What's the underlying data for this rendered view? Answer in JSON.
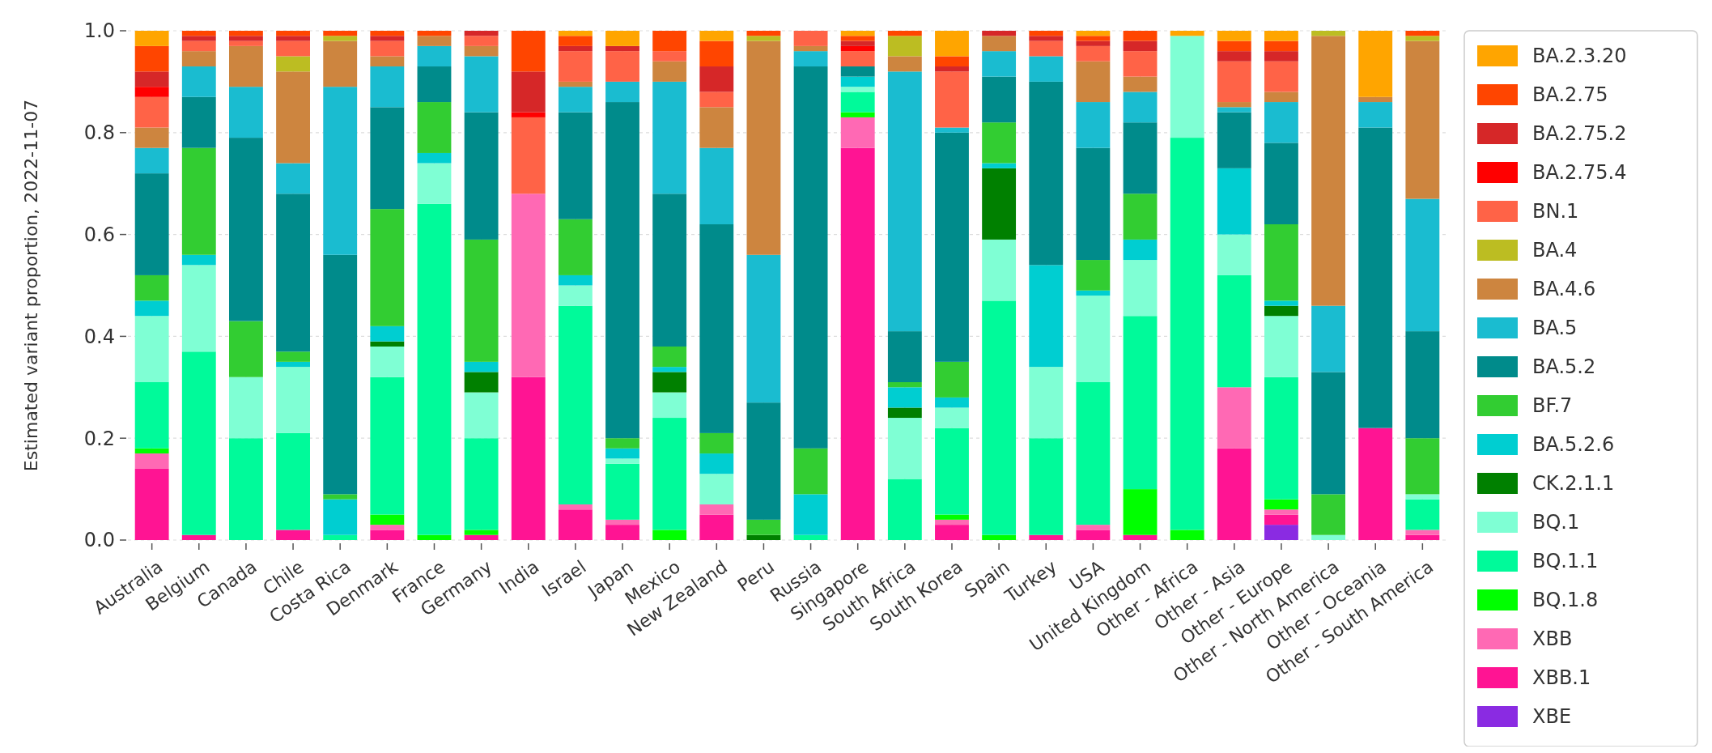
{
  "chart_data": {
    "type": "bar",
    "stacked": true,
    "ylabel": "Estimated variant proportion, 2022-11-07",
    "categories": [
      "Australia",
      "Belgium",
      "Canada",
      "Chile",
      "Costa Rica",
      "Denmark",
      "France",
      "Germany",
      "India",
      "Israel",
      "Japan",
      "Mexico",
      "New Zealand",
      "Peru",
      "Russia",
      "Singapore",
      "South Africa",
      "South Korea",
      "Spain",
      "Turkey",
      "USA",
      "United Kingdom",
      "Other - Africa",
      "Other - Asia",
      "Other - Europe",
      "Other - North America",
      "Other - Oceania",
      "Other - South America"
    ],
    "ylim": [
      0,
      1
    ],
    "yticks": [
      {
        "value": 0,
        "label": "0.0"
      },
      0.2,
      0.4,
      0.6,
      0.8,
      {
        "value": 1,
        "label": "1.0"
      }
    ],
    "grid": true,
    "legend": "right",
    "series": [
      {
        "name": "XBE",
        "color": "#8a2be2",
        "values": [
          0,
          0,
          0,
          0,
          0,
          0,
          0,
          0,
          0,
          0,
          0,
          0,
          0,
          0,
          0,
          0,
          0,
          0,
          0,
          0,
          0,
          0,
          0,
          0,
          0.03,
          0,
          0,
          0
        ]
      },
      {
        "name": "XBB.1",
        "color": "#ff1493",
        "values": [
          0.14,
          0.01,
          0,
          0.02,
          0,
          0.02,
          0,
          0.01,
          0.32,
          0.06,
          0.03,
          0,
          0.05,
          0,
          0,
          0.77,
          0,
          0.03,
          0,
          0.01,
          0.02,
          0.01,
          0,
          0.18,
          0.02,
          0,
          0.22,
          0.01
        ]
      },
      {
        "name": "XBB",
        "color": "#ff69b4",
        "values": [
          0.03,
          0,
          0,
          0,
          0,
          0.01,
          0,
          0,
          0.36,
          0.01,
          0.01,
          0,
          0.02,
          0,
          0,
          0.06,
          0,
          0.01,
          0,
          0,
          0.01,
          0,
          0,
          0.12,
          0.01,
          0,
          0,
          0.01
        ]
      },
      {
        "name": "BQ.1.8",
        "color": "#00ff00",
        "values": [
          0.01,
          0,
          0,
          0,
          0,
          0.02,
          0.01,
          0.01,
          0,
          0,
          0,
          0.02,
          0,
          0,
          0,
          0.01,
          0,
          0.01,
          0.01,
          0,
          0,
          0.09,
          0.02,
          0,
          0.02,
          0,
          0,
          0
        ]
      },
      {
        "name": "BQ.1.1",
        "color": "#00fa9a",
        "values": [
          0.13,
          0.36,
          0.2,
          0.19,
          0.01,
          0.27,
          0.65,
          0.18,
          0,
          0.39,
          0.11,
          0.22,
          0,
          0,
          0.01,
          0.04,
          0.12,
          0.17,
          0.46,
          0.19,
          0.28,
          0.34,
          0.77,
          0.22,
          0.24,
          0,
          0,
          0.06
        ]
      },
      {
        "name": "BQ.1",
        "color": "#7fffd4",
        "values": [
          0.13,
          0.17,
          0.12,
          0.13,
          0,
          0.06,
          0.08,
          0.09,
          0,
          0.04,
          0.01,
          0.05,
          0.06,
          0,
          0,
          0.01,
          0.12,
          0.04,
          0.12,
          0.14,
          0.17,
          0.11,
          0.2,
          0.08,
          0.12,
          0.01,
          0,
          0.01
        ]
      },
      {
        "name": "CK.2.1.1",
        "color": "#008000",
        "values": [
          0,
          0,
          0,
          0,
          0,
          0.01,
          0,
          0.04,
          0,
          0,
          0,
          0.04,
          0,
          0.01,
          0,
          0,
          0.02,
          0,
          0.14,
          0,
          0,
          0,
          0,
          0,
          0.02,
          0,
          0,
          0
        ]
      },
      {
        "name": "BA.5.2.6",
        "color": "#00ced1",
        "values": [
          0.03,
          0.02,
          0,
          0.01,
          0.07,
          0.03,
          0.02,
          0.02,
          0,
          0.02,
          0.02,
          0.01,
          0.04,
          0,
          0.08,
          0.02,
          0.04,
          0.02,
          0.01,
          0.2,
          0.01,
          0.04,
          0,
          0.13,
          0.01,
          0,
          0,
          0
        ]
      },
      {
        "name": "BF.7",
        "color": "#32cd32",
        "values": [
          0.05,
          0.21,
          0.11,
          0.02,
          0.01,
          0.23,
          0.1,
          0.24,
          0,
          0.11,
          0.02,
          0.04,
          0.04,
          0.03,
          0.09,
          0,
          0.01,
          0.07,
          0.08,
          0,
          0.06,
          0.09,
          0,
          0,
          0.15,
          0.08,
          0,
          0.11
        ]
      },
      {
        "name": "BA.5.2",
        "color": "#008b8b",
        "values": [
          0.2,
          0.1,
          0.36,
          0.31,
          0.47,
          0.2,
          0.07,
          0.25,
          0,
          0.21,
          0.66,
          0.3,
          0.41,
          0.23,
          0.75,
          0.02,
          0.1,
          0.45,
          0.09,
          0.36,
          0.22,
          0.14,
          0,
          0.11,
          0.16,
          0.24,
          0.59,
          0.21
        ]
      },
      {
        "name": "BA.5",
        "color": "#1abcd0",
        "values": [
          0.05,
          0.06,
          0.1,
          0.06,
          0.33,
          0.08,
          0.04,
          0.11,
          0,
          0.05,
          0.04,
          0.22,
          0.15,
          0.29,
          0.03,
          0,
          0.51,
          0.01,
          0.05,
          0.05,
          0.09,
          0.06,
          0,
          0.01,
          0.08,
          0.13,
          0.05,
          0.26
        ]
      },
      {
        "name": "BA.4.6",
        "color": "#cd853f",
        "values": [
          0.04,
          0.03,
          0.08,
          0.18,
          0.09,
          0.02,
          0.02,
          0.02,
          0,
          0.01,
          0,
          0.04,
          0.08,
          0.42,
          0.01,
          0,
          0.03,
          0,
          0.03,
          0,
          0.08,
          0.03,
          0,
          0.01,
          0.02,
          0.53,
          0.01,
          0.31
        ]
      },
      {
        "name": "BA.4",
        "color": "#bcbd22",
        "values": [
          0,
          0,
          0,
          0.03,
          0.01,
          0,
          0,
          0,
          0,
          0,
          0,
          0,
          0,
          0.01,
          0,
          0,
          0.04,
          0,
          0,
          0,
          0,
          0,
          0,
          0,
          0,
          0.01,
          0,
          0.01
        ]
      },
      {
        "name": "BN.1",
        "color": "#ff6347",
        "values": [
          0.06,
          0.02,
          0.01,
          0.03,
          0,
          0.03,
          0,
          0.02,
          0.15,
          0.06,
          0.06,
          0.02,
          0.03,
          0,
          0.03,
          0.03,
          0,
          0.11,
          0,
          0.03,
          0.03,
          0.05,
          0,
          0.08,
          0.06,
          0,
          0,
          0
        ]
      },
      {
        "name": "BA.2.75.4",
        "color": "#ff0000",
        "values": [
          0.02,
          0,
          0,
          0,
          0,
          0,
          0,
          0,
          0.01,
          0,
          0,
          0,
          0,
          0,
          0,
          0.01,
          0,
          0,
          0,
          0,
          0,
          0,
          0,
          0,
          0,
          0,
          0,
          0
        ]
      },
      {
        "name": "BA.2.75.2",
        "color": "#d62728",
        "values": [
          0.03,
          0.01,
          0.01,
          0.01,
          0,
          0.01,
          0,
          0.01,
          0.08,
          0.01,
          0.01,
          0,
          0.05,
          0,
          0,
          0.01,
          0,
          0.01,
          0.01,
          0.01,
          0.01,
          0.02,
          0,
          0.02,
          0.02,
          0,
          0,
          0
        ]
      },
      {
        "name": "BA.2.75",
        "color": "#ff4500",
        "values": [
          0.05,
          0.01,
          0.01,
          0.01,
          0.01,
          0.01,
          0.01,
          0,
          0.08,
          0.02,
          0,
          0.04,
          0.05,
          0.01,
          0,
          0.01,
          0.01,
          0.02,
          0,
          0.01,
          0.01,
          0.02,
          0,
          0.02,
          0.02,
          0,
          0,
          0.01
        ]
      },
      {
        "name": "BA.2.3.20",
        "color": "#ffa500",
        "values": [
          0.03,
          0,
          0,
          0,
          0,
          0,
          0,
          0,
          0,
          0.01,
          0.03,
          0,
          0.02,
          0,
          0,
          0.01,
          0,
          0.05,
          0,
          0,
          0.01,
          0,
          0.01,
          0.02,
          0.02,
          0,
          0.13,
          0
        ]
      }
    ]
  }
}
